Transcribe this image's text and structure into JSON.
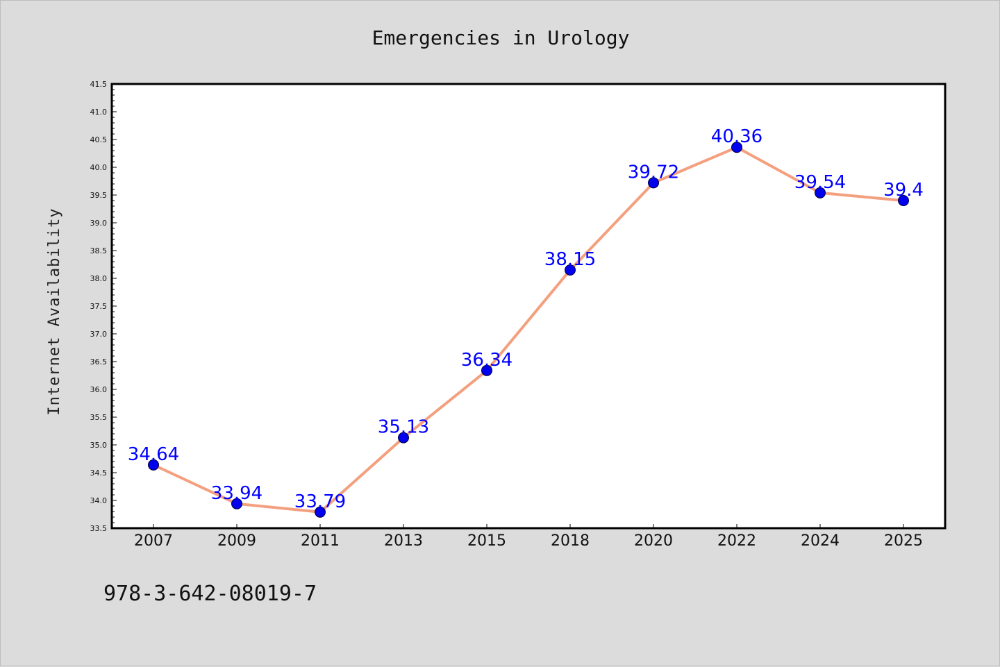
{
  "chart_data": {
    "type": "line",
    "title": "Emergencies in Urology",
    "xlabel": "",
    "ylabel": "Internet Availability",
    "categories": [
      "2007",
      "2009",
      "2011",
      "2013",
      "2015",
      "2018",
      "2020",
      "2022",
      "2024",
      "2025"
    ],
    "values": [
      34.64,
      33.94,
      33.79,
      35.13,
      36.34,
      38.15,
      39.72,
      40.36,
      39.54,
      39.4
    ],
    "data_labels": [
      "34.64",
      "33.94",
      "33.79",
      "35.13",
      "36.34",
      "38.15",
      "39.72",
      "40.36",
      "39.54",
      "39.4"
    ],
    "ylim": [
      33.5,
      41.5
    ],
    "yticks": [
      "33.5",
      "34.0",
      "34.5",
      "35.0",
      "35.5",
      "36.0",
      "36.5",
      "37.0",
      "37.5",
      "38.0",
      "38.5",
      "39.0",
      "39.5",
      "40.0",
      "40.5",
      "41.0",
      "41.5"
    ],
    "grid": false,
    "legend": "none",
    "line_color": "#f4a07e",
    "marker_color": "#0000ee",
    "label_color": "#0000ff",
    "plot_background": "#ffffff",
    "figure_background": "#dcdcdc"
  },
  "caption": "978-3-642-08019-7"
}
